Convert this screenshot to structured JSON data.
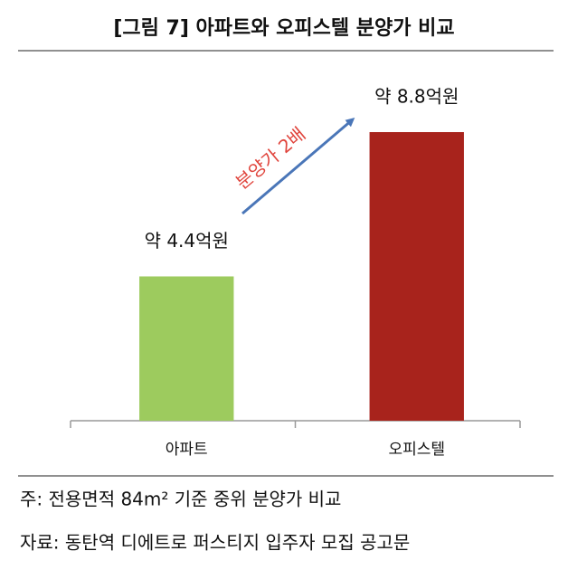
{
  "chart_data": {
    "type": "bar",
    "title": "[그림 7] 아파트와 오피스텔 분양가 비교",
    "categories": [
      "아파트",
      "오피스텔"
    ],
    "values": [
      4.4,
      8.8
    ],
    "value_labels": [
      "약 4.4억원",
      "약 8.8억원"
    ],
    "colors": [
      "#9dcb5e",
      "#a8231c"
    ],
    "ylim": [
      0,
      10
    ],
    "annotation": "분양가 2배",
    "notes": [
      "주: 전용면적 84m² 기준 중위 분양가 비교",
      "자료: 동탄역 디에트로 퍼스티지 입주자 모집 공고문"
    ]
  }
}
